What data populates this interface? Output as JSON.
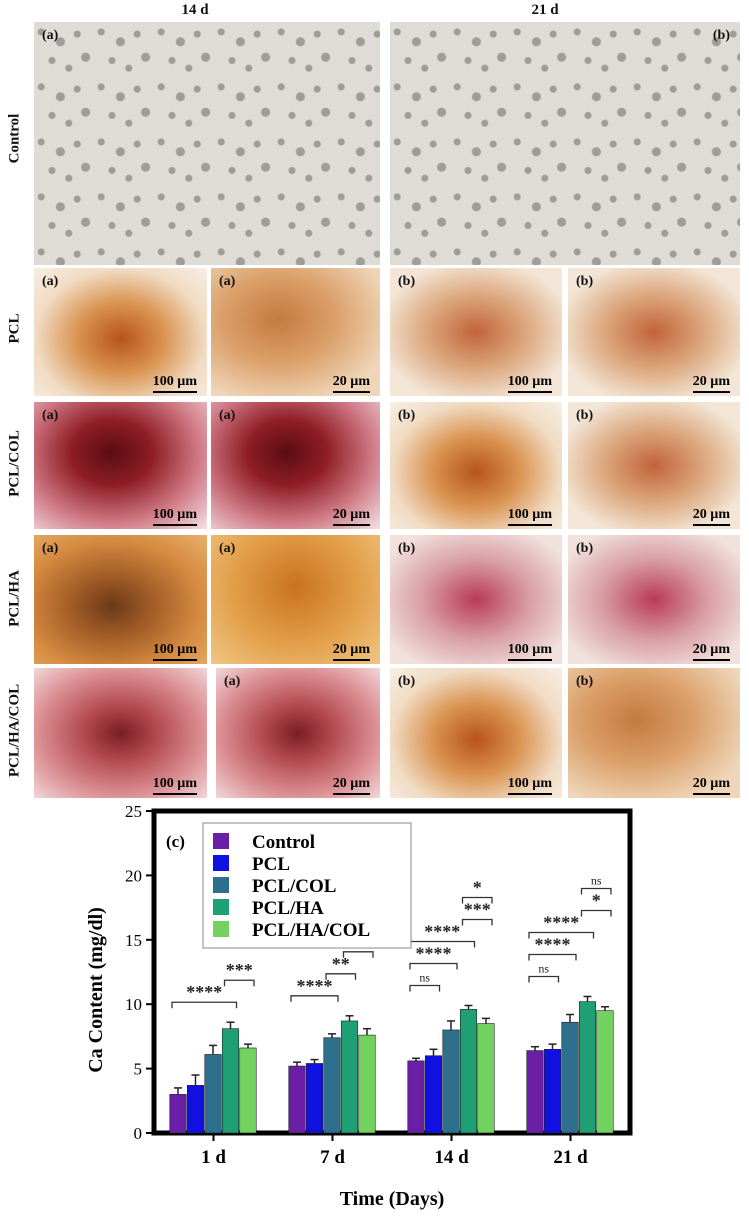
{
  "figure": {
    "column_headers": [
      "14 d",
      "21 d"
    ],
    "row_labels": [
      "Control",
      "PCL",
      "PCL/COL",
      "PCL/HA",
      "PCL/HA/COL"
    ],
    "panel_tags": {
      "left": "(a)",
      "right": "(b)",
      "chart": "(c)"
    },
    "scale_bars": {
      "large": "100 µm",
      "small": "20 µm"
    },
    "colors": {
      "control_bg": "#dedcd4",
      "alizarin_orange": "#c46a2c",
      "alizarin_red": "#8f1d25"
    }
  },
  "chart_data": {
    "type": "bar",
    "panel_label": "(c)",
    "categories": [
      "1 d",
      "7 d",
      "14 d",
      "21 d"
    ],
    "series": [
      {
        "name": "Control",
        "color": "#6a1fa6",
        "values": [
          3.0,
          5.2,
          5.6,
          6.4
        ],
        "errors": [
          0.5,
          0.3,
          0.2,
          0.3
        ]
      },
      {
        "name": "PCL",
        "color": "#1010e0",
        "values": [
          3.7,
          5.4,
          6.0,
          6.5
        ],
        "errors": [
          0.8,
          0.3,
          0.5,
          0.4
        ]
      },
      {
        "name": "PCL/COL",
        "color": "#2e6f8e",
        "values": [
          6.1,
          7.4,
          8.0,
          8.6
        ],
        "errors": [
          0.7,
          0.3,
          0.7,
          0.6
        ]
      },
      {
        "name": "PCL/HA",
        "color": "#1fa074",
        "values": [
          8.1,
          8.7,
          9.6,
          10.2
        ],
        "errors": [
          0.5,
          0.4,
          0.3,
          0.4
        ]
      },
      {
        "name": "PCL/HA/COL",
        "color": "#73d160",
        "values": [
          6.6,
          7.6,
          8.5,
          9.5
        ],
        "errors": [
          0.3,
          0.5,
          0.4,
          0.3
        ]
      }
    ],
    "ylabel": "Ca Content (mg/dl)",
    "xlabel": "Time (Days)",
    "ylim": [
      0,
      25
    ],
    "yticks": [
      0,
      5,
      10,
      15,
      20,
      25
    ],
    "legend_position": "top-left",
    "grid": false,
    "significance": [
      {
        "group": "1 d",
        "label": "****",
        "a": 0,
        "b": 3,
        "level": 0
      },
      {
        "group": "1 d",
        "label": "***",
        "a": 3,
        "b": 4,
        "level": 1
      },
      {
        "group": "7 d",
        "label": "****",
        "a": 0,
        "b": 2,
        "level": 0
      },
      {
        "group": "7 d",
        "label": "**",
        "a": 2,
        "b": 3,
        "level": 1
      },
      {
        "group": "7 d",
        "label": "*",
        "a": 3,
        "b": 4,
        "level": 2
      },
      {
        "group": "14 d",
        "label": "ns",
        "a": 0,
        "b": 1,
        "level": 0
      },
      {
        "group": "14 d",
        "label": "****",
        "a": 0,
        "b": 2,
        "level": 1
      },
      {
        "group": "14 d",
        "label": "****",
        "a": 0,
        "b": 3,
        "level": 2
      },
      {
        "group": "14 d",
        "label": "***",
        "a": 3,
        "b": 4,
        "level": 3
      },
      {
        "group": "14 d",
        "label": "*",
        "a": 3,
        "b": 4,
        "level": 4
      },
      {
        "group": "21 d",
        "label": "ns",
        "a": 0,
        "b": 1,
        "level": 0
      },
      {
        "group": "21 d",
        "label": "****",
        "a": 0,
        "b": 2,
        "level": 1
      },
      {
        "group": "21 d",
        "label": "****",
        "a": 0,
        "b": 3,
        "level": 2
      },
      {
        "group": "21 d",
        "label": "*",
        "a": 3,
        "b": 4,
        "level": 3
      },
      {
        "group": "21 d",
        "label": "ns",
        "a": 3,
        "b": 4,
        "level": 4
      }
    ]
  }
}
